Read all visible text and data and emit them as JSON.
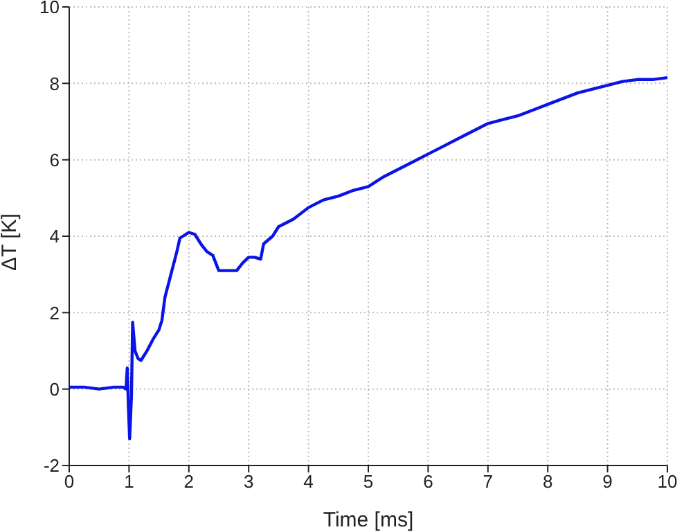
{
  "chart_data": {
    "type": "line",
    "xlabel": "Time  [ms]",
    "ylabel": "ΔT  [K]",
    "xlim": [
      0,
      10
    ],
    "xticks": [
      0,
      1,
      2,
      3,
      4,
      5,
      6,
      7,
      8,
      9,
      10
    ],
    "ylim": [
      -2,
      10
    ],
    "yticks": [
      -2,
      0,
      2,
      4,
      6,
      8,
      10
    ],
    "grid": true,
    "marker": "none",
    "line_style": "solid",
    "series": [
      {
        "color": "#0a14e6",
        "x": [
          0,
          0.25,
          0.5,
          0.75,
          0.9,
          0.95,
          0.97,
          0.99,
          1.01,
          1.04,
          1.06,
          1.1,
          1.15,
          1.2,
          1.3,
          1.4,
          1.5,
          1.55,
          1.6,
          1.7,
          1.8,
          1.85,
          1.9,
          2.0,
          2.1,
          2.2,
          2.3,
          2.4,
          2.5,
          2.6,
          2.7,
          2.8,
          2.9,
          3.0,
          3.1,
          3.2,
          3.25,
          3.4,
          3.5,
          3.75,
          4.0,
          4.25,
          4.5,
          4.75,
          5.0,
          5.25,
          5.5,
          5.75,
          6.0,
          6.25,
          6.5,
          6.75,
          7.0,
          7.25,
          7.5,
          7.75,
          8.0,
          8.25,
          8.5,
          8.75,
          9.0,
          9.25,
          9.5,
          9.75,
          10.0
        ],
        "values": [
          0.05,
          0.05,
          0.0,
          0.05,
          0.05,
          0.0,
          0.55,
          -0.5,
          -1.3,
          -0.2,
          1.75,
          1.0,
          0.8,
          0.75,
          1.0,
          1.3,
          1.55,
          1.8,
          2.4,
          3.0,
          3.6,
          3.95,
          4.0,
          4.1,
          4.05,
          3.8,
          3.6,
          3.5,
          3.1,
          3.1,
          3.1,
          3.1,
          3.3,
          3.45,
          3.45,
          3.4,
          3.8,
          4.0,
          4.25,
          4.45,
          4.75,
          4.95,
          5.05,
          5.2,
          5.3,
          5.55,
          5.75,
          5.95,
          6.15,
          6.35,
          6.55,
          6.75,
          6.95,
          7.05,
          7.15,
          7.3,
          7.45,
          7.6,
          7.75,
          7.85,
          7.95,
          8.05,
          8.1,
          8.1,
          8.15
        ]
      }
    ]
  }
}
